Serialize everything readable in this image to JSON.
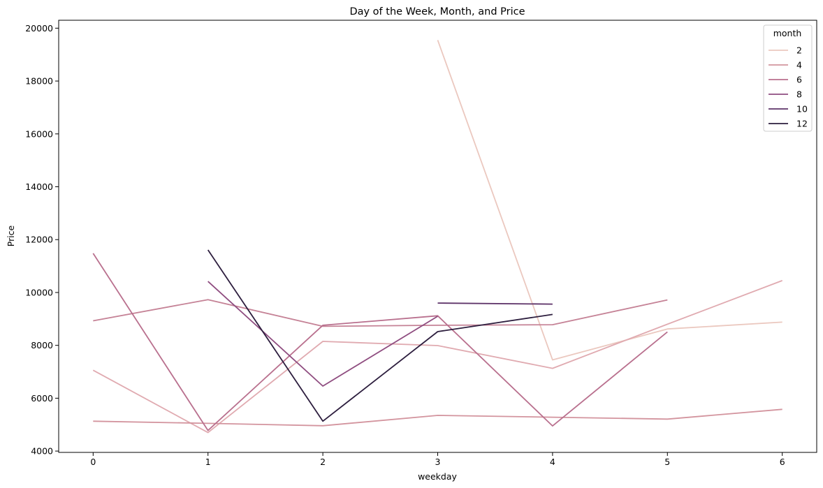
{
  "chart_data": {
    "type": "line",
    "title": "Day of the Week, Month, and Price",
    "xlabel": "weekday",
    "ylabel": "Price",
    "xlim": [
      -0.3,
      6.3
    ],
    "ylim": [
      3950,
      20300
    ],
    "x_ticks": [
      0,
      1,
      2,
      3,
      4,
      5,
      6
    ],
    "y_ticks": [
      4000,
      6000,
      8000,
      10000,
      12000,
      14000,
      16000,
      18000,
      20000
    ],
    "grid": false,
    "legend": {
      "title": "month",
      "placement": "top-right",
      "entries": [
        "2",
        "4",
        "6",
        "8",
        "10",
        "12"
      ],
      "colors": [
        "#ebc8bf",
        "#d3949e",
        "#b9708e",
        "#8f4d80",
        "#5d3268",
        "#2d1e3e"
      ]
    },
    "series": [
      {
        "name": "2",
        "color": "#ebc8bf",
        "x": [
          3,
          4,
          5,
          6
        ],
        "y": [
          19550,
          7450,
          8620,
          8880
        ]
      },
      {
        "color": "#e0aab0",
        "x": [
          0,
          1,
          2,
          3,
          4,
          5,
          6
        ],
        "y": [
          7060,
          4700,
          8150,
          7990,
          7130,
          8800,
          10450
        ]
      },
      {
        "name": "4",
        "color": "#d3949e",
        "x": [
          0,
          1,
          2,
          3,
          4,
          5,
          6
        ],
        "y": [
          5130,
          5050,
          4960,
          5350,
          5280,
          5210,
          5580
        ]
      },
      {
        "color": "#c58296",
        "x": [
          0,
          1,
          2,
          3,
          4,
          5
        ],
        "y": [
          8930,
          9730,
          8720,
          8760,
          8780,
          9720
        ]
      },
      {
        "name": "6",
        "color": "#b9708e",
        "x": [
          0,
          1,
          2,
          3,
          4,
          5
        ],
        "y": [
          11480,
          4780,
          8760,
          9120,
          4950,
          8510
        ]
      },
      {
        "name": "8",
        "color": "#8f4d80",
        "x": [
          1,
          2,
          3
        ],
        "y": [
          10420,
          6460,
          9100
        ]
      },
      {
        "name": "10",
        "color": "#5d3268",
        "x": [
          3,
          4
        ],
        "y": [
          9600,
          9560
        ]
      },
      {
        "name": "12",
        "color": "#2d1e3e",
        "x": [
          1,
          2,
          3,
          4
        ],
        "y": [
          11610,
          5130,
          8520,
          9170
        ]
      }
    ]
  }
}
